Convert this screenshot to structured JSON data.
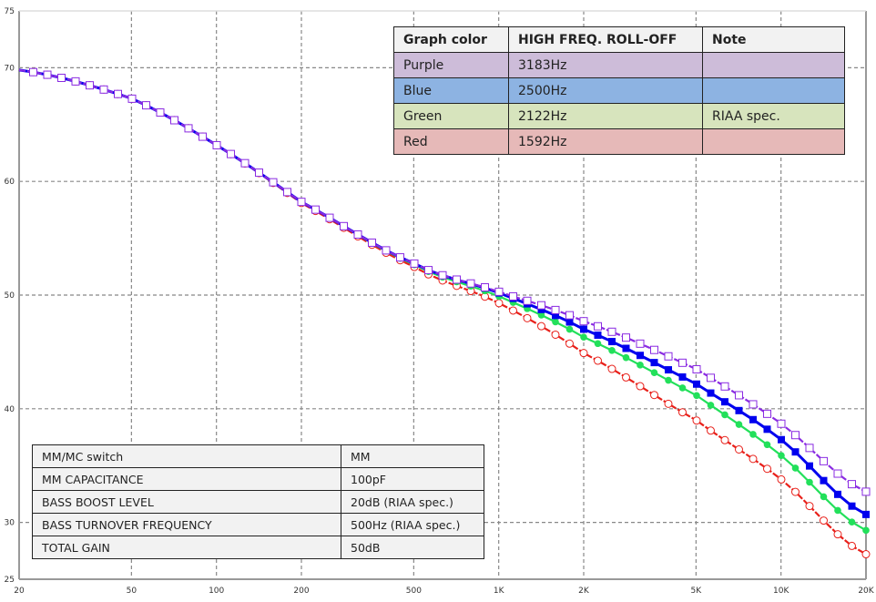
{
  "chart_data": {
    "type": "line",
    "title": "",
    "xlabel": "",
    "ylabel": "",
    "xscale": "log",
    "xlim": [
      20,
      20000
    ],
    "ylim": [
      25,
      75
    ],
    "x_ticks": [
      20,
      50,
      100,
      200,
      500,
      1000,
      2000,
      5000,
      10000,
      20000
    ],
    "x_tick_labels": [
      "20",
      "50",
      "100",
      "200",
      "500",
      "1K",
      "2K",
      "5K",
      "10K",
      "20K"
    ],
    "y_ticks": [
      25,
      30,
      40,
      50,
      60,
      70,
      75
    ],
    "y_tick_labels": [
      "25",
      "30",
      "40",
      "50",
      "60",
      "70",
      "75"
    ],
    "grid": true,
    "legend_position": "top-right table",
    "x": [
      20,
      50,
      100,
      200,
      500,
      1000,
      2000,
      5000,
      10000,
      20000
    ],
    "series": [
      {
        "name": "Purple",
        "color": "#8a2be2",
        "marker": "open-square",
        "line": "dashed",
        "roll_off": "3183Hz",
        "values": [
          69.8,
          67.3,
          63.2,
          58.2,
          52.8,
          50.3,
          47.7,
          43.5,
          38.7,
          32.7
        ]
      },
      {
        "name": "Blue",
        "color": "#0000ee",
        "marker": "filled-square",
        "line": "solid",
        "roll_off": "2500Hz",
        "values": [
          69.8,
          67.3,
          63.2,
          58.2,
          52.8,
          50.2,
          47.0,
          42.2,
          37.3,
          30.7
        ]
      },
      {
        "name": "Green",
        "color": "#22e05a",
        "marker": "filled-circle",
        "line": "solid",
        "roll_off": "2122Hz",
        "note": "RIAA spec.",
        "values": [
          69.8,
          67.3,
          63.2,
          58.2,
          52.7,
          49.9,
          46.3,
          41.2,
          35.9,
          29.3
        ]
      },
      {
        "name": "Red",
        "color": "#e8201a",
        "marker": "open-circle",
        "line": "dashed",
        "roll_off": "1592Hz",
        "values": [
          69.8,
          67.3,
          63.2,
          58.1,
          52.5,
          49.3,
          44.9,
          39.0,
          33.8,
          27.2
        ]
      }
    ]
  },
  "legend_table": {
    "headers": [
      "Graph color",
      "HIGH FREQ. ROLL-OFF",
      "Note"
    ],
    "rows": [
      {
        "color": "Purple",
        "freq": "3183Hz",
        "note": "",
        "bg": "#cdbcd9"
      },
      {
        "color": "Blue",
        "freq": "2500Hz",
        "note": "",
        "bg": "#8db3e2"
      },
      {
        "color": "Green",
        "freq": "2122Hz",
        "note": "RIAA spec.",
        "bg": "#d7e4bd"
      },
      {
        "color": "Red",
        "freq": "1592Hz",
        "note": "",
        "bg": "#e6b9b8"
      }
    ]
  },
  "settings_table": {
    "rows": [
      {
        "key": "MM/MC switch",
        "value": "MM"
      },
      {
        "key": "MM CAPACITANCE",
        "value": "100pF"
      },
      {
        "key": "BASS BOOST LEVEL",
        "value": "20dB (RIAA spec.)"
      },
      {
        "key": "BASS TURNOVER FREQUENCY",
        "value": "500Hz (RIAA spec.)"
      },
      {
        "key": "TOTAL GAIN",
        "value": "50dB"
      }
    ]
  }
}
